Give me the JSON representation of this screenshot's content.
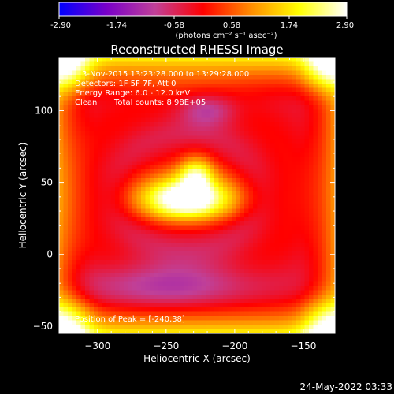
{
  "chart_data": {
    "type": "heatmap",
    "title": "Reconstructed RHESSI Image",
    "xlabel": "Heliocentric X (arcsec)",
    "ylabel": "Heliocentric Y (arcsec)",
    "xlim": [
      -328,
      -127
    ],
    "ylim": [
      -55,
      137
    ],
    "x_ticks": [
      -300,
      -250,
      -200,
      -150
    ],
    "y_ticks": [
      -50,
      0,
      50,
      100
    ],
    "colorbar": {
      "range": [
        -2.9,
        2.9
      ],
      "ticks": [
        "-2.90",
        "-1.74",
        "-0.58",
        "0.58",
        "1.74",
        "2.90"
      ],
      "units": "(photons cm⁻² s⁻¹ asec⁻²)",
      "colors": [
        "#0000ff",
        "#7a00c8",
        "#c04098",
        "#ff0000",
        "#ff8c00",
        "#ffff00",
        "#ffffff"
      ]
    },
    "annotations": [
      "3-Nov-2015 13:23:28.000 to 13:29:28.000",
      "Detectors: 1F 5F 7F, Att 0",
      "Energy Range: 6.0 - 12.0 keV",
      "Clean",
      "Total counts: 8.98E+05"
    ],
    "peak_label": "Position of Peak = [-240,38]",
    "peak": {
      "x": -240,
      "y": 38
    },
    "grid": false
  },
  "footer": {
    "timestamp": "24-May-2022 03:33"
  }
}
